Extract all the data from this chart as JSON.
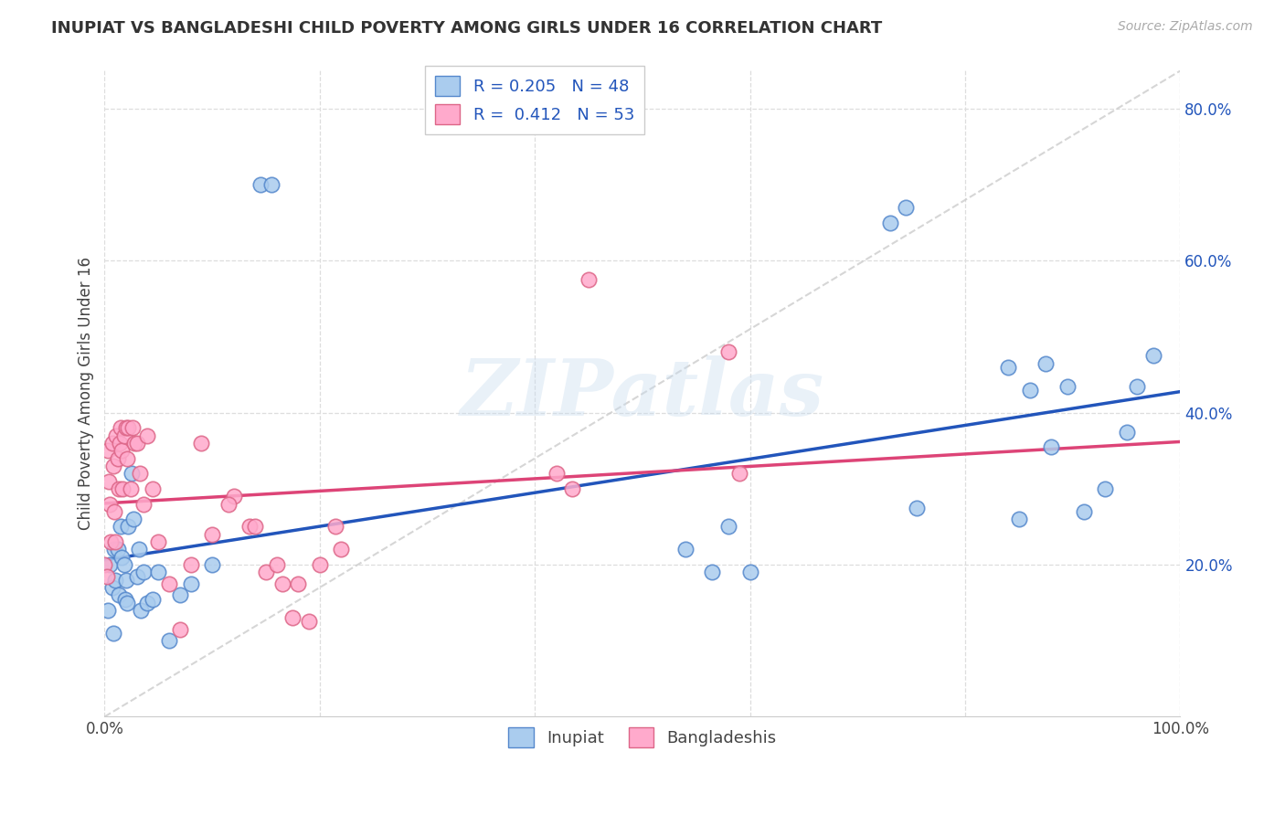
{
  "title": "INUPIAT VS BANGLADESHI CHILD POVERTY AMONG GIRLS UNDER 16 CORRELATION CHART",
  "source": "Source: ZipAtlas.com",
  "ylabel": "Child Poverty Among Girls Under 16",
  "xlim": [
    0.0,
    1.0
  ],
  "ylim": [
    0.0,
    0.85
  ],
  "xtick_positions": [
    0.0,
    0.2,
    0.4,
    0.6,
    0.8,
    1.0
  ],
  "xticklabels": [
    "0.0%",
    "",
    "",
    "",
    "",
    "100.0%"
  ],
  "ytick_positions": [
    0.2,
    0.4,
    0.6,
    0.8
  ],
  "yticklabels": [
    "20.0%",
    "40.0%",
    "60.0%",
    "80.0%"
  ],
  "watermark_text": "ZIPatlas",
  "legend_r_blue": "0.205",
  "legend_n_blue": "48",
  "legend_r_pink": "0.412",
  "legend_n_pink": "53",
  "blue_fill": "#AACCEE",
  "blue_edge": "#5588CC",
  "pink_fill": "#FFAACC",
  "pink_edge": "#DD6688",
  "blue_line": "#2255BB",
  "pink_line": "#DD4477",
  "dash_color": "#CCCCCC",
  "grid_color": "#DDDDDD",
  "inupiat_x": [
    0.003,
    0.005,
    0.007,
    0.008,
    0.009,
    0.01,
    0.012,
    0.013,
    0.015,
    0.016,
    0.018,
    0.019,
    0.02,
    0.021,
    0.022,
    0.025,
    0.027,
    0.03,
    0.032,
    0.034,
    0.036,
    0.04,
    0.045,
    0.05,
    0.06,
    0.07,
    0.08,
    0.1,
    0.145,
    0.155,
    0.54,
    0.565,
    0.58,
    0.6,
    0.73,
    0.745,
    0.755,
    0.84,
    0.85,
    0.86,
    0.875,
    0.88,
    0.895,
    0.91,
    0.93,
    0.95,
    0.96,
    0.975
  ],
  "inupiat_y": [
    0.14,
    0.2,
    0.17,
    0.11,
    0.22,
    0.18,
    0.22,
    0.16,
    0.25,
    0.21,
    0.2,
    0.155,
    0.18,
    0.15,
    0.25,
    0.32,
    0.26,
    0.185,
    0.22,
    0.14,
    0.19,
    0.15,
    0.155,
    0.19,
    0.1,
    0.16,
    0.175,
    0.2,
    0.7,
    0.7,
    0.22,
    0.19,
    0.25,
    0.19,
    0.65,
    0.67,
    0.275,
    0.46,
    0.26,
    0.43,
    0.465,
    0.355,
    0.435,
    0.27,
    0.3,
    0.375,
    0.435,
    0.475
  ],
  "bangladeshi_x": [
    0.0,
    0.002,
    0.003,
    0.004,
    0.005,
    0.006,
    0.007,
    0.008,
    0.009,
    0.01,
    0.011,
    0.012,
    0.013,
    0.014,
    0.015,
    0.016,
    0.017,
    0.018,
    0.02,
    0.021,
    0.022,
    0.024,
    0.026,
    0.028,
    0.03,
    0.033,
    0.036,
    0.04,
    0.045,
    0.05,
    0.06,
    0.07,
    0.08,
    0.1,
    0.12,
    0.135,
    0.15,
    0.165,
    0.175,
    0.19,
    0.2,
    0.215,
    0.22,
    0.42,
    0.435,
    0.45,
    0.58,
    0.59,
    0.09,
    0.115,
    0.14,
    0.16,
    0.18
  ],
  "bangladeshi_y": [
    0.2,
    0.185,
    0.35,
    0.31,
    0.28,
    0.23,
    0.36,
    0.33,
    0.27,
    0.23,
    0.37,
    0.34,
    0.3,
    0.36,
    0.38,
    0.35,
    0.3,
    0.37,
    0.38,
    0.34,
    0.38,
    0.3,
    0.38,
    0.36,
    0.36,
    0.32,
    0.28,
    0.37,
    0.3,
    0.23,
    0.175,
    0.115,
    0.2,
    0.24,
    0.29,
    0.25,
    0.19,
    0.175,
    0.13,
    0.125,
    0.2,
    0.25,
    0.22,
    0.32,
    0.3,
    0.575,
    0.48,
    0.32,
    0.36,
    0.28,
    0.25,
    0.2,
    0.175
  ]
}
